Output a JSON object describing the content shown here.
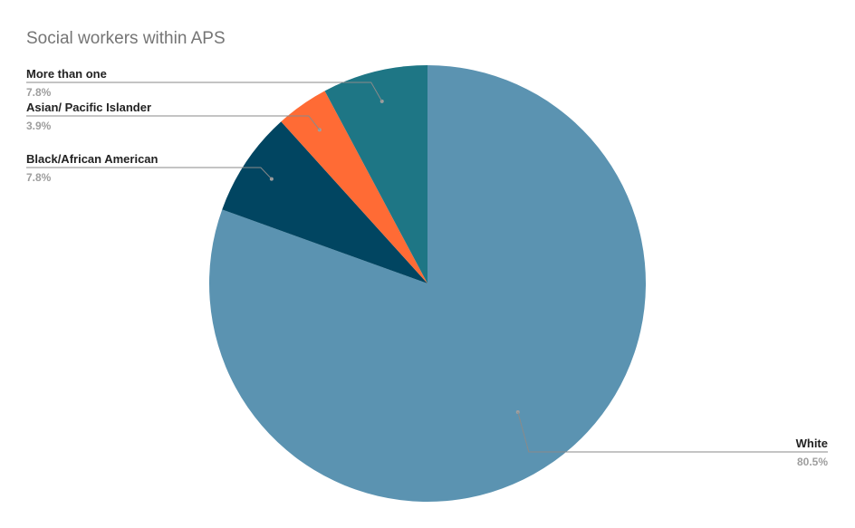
{
  "chart_data": {
    "type": "pie",
    "title": "Social workers within APS",
    "slices": [
      {
        "label": "White",
        "value": 80.5,
        "display": "80.5%",
        "color": "#5b93b1"
      },
      {
        "label": "Black/African American",
        "value": 7.8,
        "display": "7.8%",
        "color": "#014561"
      },
      {
        "label": "Asian/ Pacific Islander",
        "value": 3.9,
        "display": "3.9%",
        "color": "#ff6b35"
      },
      {
        "label": "More than one",
        "value": 7.8,
        "display": "7.8%",
        "color": "#1e7685"
      }
    ],
    "start_angle_deg": 0,
    "direction": "clockwise",
    "legend": "none",
    "label_style": "leader-lines"
  }
}
